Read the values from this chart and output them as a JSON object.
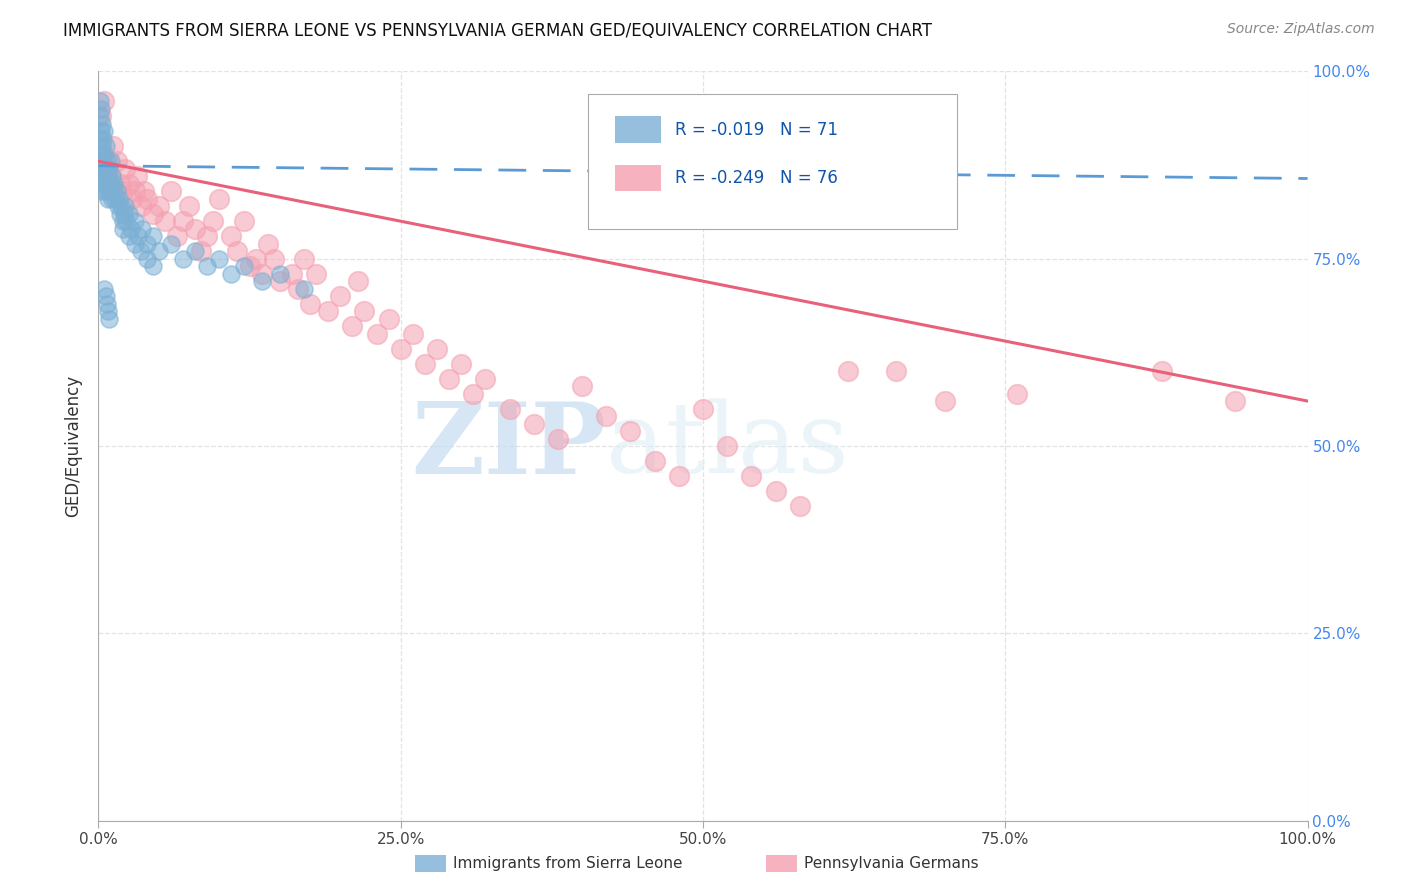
{
  "title": "IMMIGRANTS FROM SIERRA LEONE VS PENNSYLVANIA GERMAN GED/EQUIVALENCY CORRELATION CHART",
  "source": "Source: ZipAtlas.com",
  "ylabel": "GED/Equivalency",
  "xlim": [
    0,
    1.0
  ],
  "ylim": [
    0,
    1.0
  ],
  "xtick_positions": [
    0.0,
    0.25,
    0.5,
    0.75,
    1.0
  ],
  "xtick_labels": [
    "0.0%",
    "25.0%",
    "50.0%",
    "75.0%",
    "100.0%"
  ],
  "ytick_positions": [
    0.0,
    0.25,
    0.5,
    0.75,
    1.0
  ],
  "ytick_labels_right": [
    "0.0%",
    "25.0%",
    "50.0%",
    "75.0%",
    "100.0%"
  ],
  "series1_name": "Immigrants from Sierra Leone",
  "series1_color": "#7BAFD4",
  "series1_R": -0.019,
  "series1_N": 71,
  "series2_name": "Pennsylvania Germans",
  "series2_color": "#F4A0B0",
  "series2_R": -0.249,
  "series2_N": 76,
  "watermark_zip": "ZIP",
  "watermark_atlas": "atlas",
  "background_color": "#ffffff",
  "grid_color": "#dddddd",
  "blue_x": [
    0.001,
    0.001,
    0.001,
    0.002,
    0.002,
    0.002,
    0.002,
    0.003,
    0.003,
    0.003,
    0.003,
    0.004,
    0.004,
    0.004,
    0.005,
    0.005,
    0.005,
    0.006,
    0.006,
    0.006,
    0.007,
    0.007,
    0.008,
    0.008,
    0.009,
    0.009,
    0.01,
    0.01,
    0.011,
    0.011,
    0.012,
    0.013,
    0.014,
    0.015,
    0.016,
    0.017,
    0.018,
    0.019,
    0.02,
    0.021,
    0.022,
    0.023,
    0.025,
    0.027,
    0.03,
    0.033,
    0.036,
    0.04,
    0.045,
    0.05,
    0.06,
    0.07,
    0.08,
    0.09,
    0.1,
    0.11,
    0.12,
    0.135,
    0.15,
    0.17,
    0.02,
    0.025,
    0.03,
    0.035,
    0.04,
    0.045,
    0.005,
    0.006,
    0.007,
    0.008,
    0.009
  ],
  "blue_y": [
    0.96,
    0.94,
    0.91,
    0.95,
    0.92,
    0.89,
    0.86,
    0.93,
    0.9,
    0.87,
    0.84,
    0.91,
    0.88,
    0.85,
    0.92,
    0.89,
    0.86,
    0.9,
    0.87,
    0.84,
    0.88,
    0.85,
    0.86,
    0.83,
    0.87,
    0.84,
    0.88,
    0.85,
    0.86,
    0.83,
    0.84,
    0.85,
    0.83,
    0.84,
    0.82,
    0.83,
    0.81,
    0.82,
    0.8,
    0.81,
    0.82,
    0.8,
    0.81,
    0.79,
    0.8,
    0.78,
    0.79,
    0.77,
    0.78,
    0.76,
    0.77,
    0.75,
    0.76,
    0.74,
    0.75,
    0.73,
    0.74,
    0.72,
    0.73,
    0.71,
    0.79,
    0.78,
    0.77,
    0.76,
    0.75,
    0.74,
    0.71,
    0.7,
    0.69,
    0.68,
    0.67
  ],
  "pink_x": [
    0.002,
    0.005,
    0.008,
    0.01,
    0.012,
    0.015,
    0.018,
    0.02,
    0.022,
    0.025,
    0.028,
    0.03,
    0.032,
    0.035,
    0.038,
    0.04,
    0.045,
    0.05,
    0.055,
    0.06,
    0.065,
    0.07,
    0.075,
    0.08,
    0.085,
    0.09,
    0.095,
    0.1,
    0.11,
    0.115,
    0.12,
    0.125,
    0.13,
    0.135,
    0.14,
    0.145,
    0.15,
    0.16,
    0.165,
    0.17,
    0.175,
    0.18,
    0.19,
    0.2,
    0.21,
    0.215,
    0.22,
    0.23,
    0.24,
    0.25,
    0.26,
    0.27,
    0.28,
    0.29,
    0.3,
    0.31,
    0.32,
    0.34,
    0.36,
    0.38,
    0.4,
    0.42,
    0.44,
    0.46,
    0.48,
    0.5,
    0.52,
    0.54,
    0.56,
    0.58,
    0.62,
    0.66,
    0.7,
    0.76,
    0.88,
    0.94
  ],
  "pink_y": [
    0.94,
    0.96,
    0.88,
    0.86,
    0.9,
    0.88,
    0.85,
    0.84,
    0.87,
    0.85,
    0.83,
    0.84,
    0.86,
    0.82,
    0.84,
    0.83,
    0.81,
    0.82,
    0.8,
    0.84,
    0.78,
    0.8,
    0.82,
    0.79,
    0.76,
    0.78,
    0.8,
    0.83,
    0.78,
    0.76,
    0.8,
    0.74,
    0.75,
    0.73,
    0.77,
    0.75,
    0.72,
    0.73,
    0.71,
    0.75,
    0.69,
    0.73,
    0.68,
    0.7,
    0.66,
    0.72,
    0.68,
    0.65,
    0.67,
    0.63,
    0.65,
    0.61,
    0.63,
    0.59,
    0.61,
    0.57,
    0.59,
    0.55,
    0.53,
    0.51,
    0.58,
    0.54,
    0.52,
    0.48,
    0.46,
    0.55,
    0.5,
    0.46,
    0.44,
    0.42,
    0.6,
    0.6,
    0.56,
    0.57,
    0.6,
    0.56
  ]
}
